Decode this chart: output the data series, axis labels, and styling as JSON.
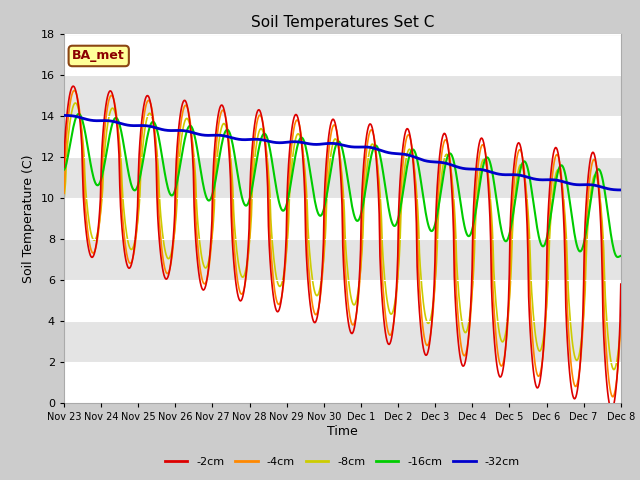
{
  "title": "Soil Temperatures Set C",
  "xlabel": "Time",
  "ylabel": "Soil Temperature (C)",
  "ylim": [
    0,
    18
  ],
  "yticks": [
    0,
    2,
    4,
    6,
    8,
    10,
    12,
    14,
    16,
    18
  ],
  "fig_bg": "#d8d8d8",
  "plot_bg": "#f0f0f0",
  "band_colors": [
    "#ffffff",
    "#e0e0e0"
  ],
  "annotation_text": "BA_met",
  "annotation_bg": "#ffff99",
  "annotation_border": "#8B4513",
  "series_colors": {
    "-2cm": "#dd0000",
    "-4cm": "#ff8800",
    "-8cm": "#cccc00",
    "-16cm": "#00cc00",
    "-32cm": "#0000cc"
  },
  "legend_labels": [
    "-2cm",
    "-4cm",
    "-8cm",
    "-16cm",
    "-32cm"
  ]
}
